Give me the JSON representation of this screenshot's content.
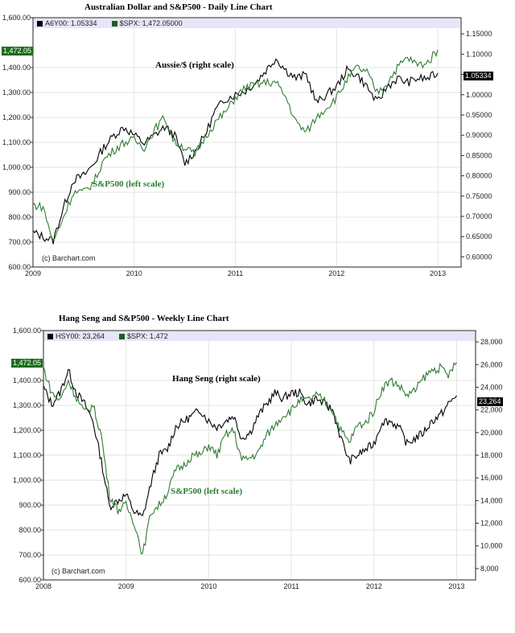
{
  "charts_meta": [
    {
      "title": "Australian Dollar and S&P500 - Daily Line Chart",
      "legend": [
        {
          "symbol": "A6Y00",
          "label": "A6Y00: 1.05334",
          "color": "#000000"
        },
        {
          "symbol": "$SPX",
          "label": "$SPX: 1,472.05000",
          "color": "#2e7d32"
        }
      ],
      "left_axis_ticks": [
        "1,600.00",
        "1,400.00",
        "1,300.00",
        "1,200.00",
        "1,100.00",
        "1,000.00",
        "900.00",
        "800.00",
        "700.00",
        "600.00"
      ],
      "right_axis_ticks": [
        "1.15000",
        "1.10000",
        "1.05000",
        "1.00000",
        "0.95000",
        "0.90000",
        "0.85000",
        "0.80000",
        "0.75000",
        "0.70000",
        "0.65000",
        "0.60000"
      ],
      "x_ticks": [
        "2009",
        "2010",
        "2011",
        "2012",
        "2013"
      ],
      "left_last_tag": "1,472.05",
      "right_last_tag": "1.05334",
      "annotation_right": "Aussie/$ (right scale)",
      "annotation_left": "S&P500 (left scale)",
      "copyright": "(c) Barchart.com"
    },
    {
      "title": "Hang Seng and S&P500 - Weekly Line Chart",
      "legend": [
        {
          "symbol": "HSY00",
          "label": "HSY00: 23,264",
          "color": "#000000"
        },
        {
          "symbol": "$SPX",
          "label": "$SPX: 1,472",
          "color": "#2e7d32"
        }
      ],
      "left_axis_ticks": [
        "1,600.00",
        "1,400.00",
        "1,300.00",
        "1,200.00",
        "1,100.00",
        "1,000.00",
        "900.00",
        "800.00",
        "700.00",
        "600.00"
      ],
      "right_axis_ticks": [
        "28,000",
        "26,000",
        "24,000",
        "22,000",
        "20,000",
        "18,000",
        "16,000",
        "14,000",
        "12,000",
        "10,000",
        "8,000"
      ],
      "x_ticks": [
        "2008",
        "2009",
        "2010",
        "2011",
        "2012",
        "2013"
      ],
      "left_last_tag": "1,472.05",
      "right_last_tag": "23,264",
      "annotation_right": "Hang Seng (right scale)",
      "annotation_left": "S&P500 (left scale)",
      "copyright": "(c) Barchart.com"
    }
  ],
  "chart_data": [
    {
      "type": "line",
      "title": "Australian Dollar and S&P500 - Daily Line Chart",
      "xlabel": "",
      "ylabel_left": "S&P500",
      "ylabel_right": "Aussie/$",
      "x_ticks": [
        "2009",
        "2010",
        "2011",
        "2012",
        "2013"
      ],
      "ylim_left": [
        600,
        1600
      ],
      "ylim_right": [
        0.575,
        1.19
      ],
      "grid": true,
      "legend_position": "top-left",
      "x": [
        2009.0,
        2009.1,
        2009.2,
        2009.3,
        2009.4,
        2009.5,
        2009.6,
        2009.7,
        2009.8,
        2009.9,
        2010.0,
        2010.1,
        2010.2,
        2010.3,
        2010.4,
        2010.5,
        2010.6,
        2010.7,
        2010.8,
        2010.9,
        2011.0,
        2011.1,
        2011.2,
        2011.3,
        2011.4,
        2011.5,
        2011.6,
        2011.7,
        2011.8,
        2011.9,
        2012.0,
        2012.1,
        2012.2,
        2012.3,
        2012.4,
        2012.5,
        2012.6,
        2012.7,
        2012.8,
        2012.9,
        2013.0
      ],
      "series": [
        {
          "name": "A6Y00 (Aussie/$, right scale)",
          "axis": "right",
          "color": "#000000",
          "values": [
            0.66,
            0.65,
            0.64,
            0.72,
            0.79,
            0.8,
            0.83,
            0.87,
            0.9,
            0.92,
            0.9,
            0.88,
            0.9,
            0.92,
            0.9,
            0.83,
            0.86,
            0.9,
            0.96,
            0.99,
            1.0,
            1.01,
            1.03,
            1.06,
            1.09,
            1.06,
            1.04,
            1.05,
            0.98,
            1.0,
            1.02,
            1.06,
            1.05,
            1.02,
            0.98,
            1.02,
            1.04,
            1.03,
            1.04,
            1.04,
            1.05334
          ]
        },
        {
          "name": "$SPX (S&P500, left scale)",
          "axis": "left",
          "color": "#2e7d32",
          "values": [
            850,
            840,
            700,
            800,
            900,
            900,
            940,
            1030,
            1070,
            1100,
            1110,
            1080,
            1150,
            1200,
            1100,
            1080,
            1050,
            1120,
            1180,
            1220,
            1280,
            1320,
            1330,
            1340,
            1340,
            1280,
            1180,
            1140,
            1200,
            1240,
            1280,
            1350,
            1400,
            1380,
            1300,
            1340,
            1400,
            1440,
            1410,
            1420,
            1472.05
          ]
        }
      ]
    },
    {
      "type": "line",
      "title": "Hang Seng and S&P500 - Weekly Line Chart",
      "xlabel": "",
      "ylabel_left": "S&P500",
      "ylabel_right": "Hang Seng",
      "x_ticks": [
        "2008",
        "2009",
        "2010",
        "2011",
        "2012",
        "2013"
      ],
      "ylim_left": [
        600,
        1600
      ],
      "ylim_right": [
        7000,
        29000
      ],
      "grid": true,
      "legend_position": "top-left",
      "x": [
        2008.0,
        2008.1,
        2008.2,
        2008.3,
        2008.4,
        2008.5,
        2008.6,
        2008.7,
        2008.8,
        2008.9,
        2009.0,
        2009.1,
        2009.2,
        2009.3,
        2009.4,
        2009.5,
        2009.6,
        2009.7,
        2009.8,
        2009.9,
        2010.0,
        2010.1,
        2010.2,
        2010.3,
        2010.4,
        2010.5,
        2010.6,
        2010.7,
        2010.8,
        2010.9,
        2011.0,
        2011.1,
        2011.2,
        2011.3,
        2011.4,
        2011.5,
        2011.6,
        2011.7,
        2011.8,
        2011.9,
        2012.0,
        2012.1,
        2012.2,
        2012.3,
        2012.4,
        2012.5,
        2012.6,
        2012.7,
        2012.8,
        2012.9,
        2013.0
      ],
      "series": [
        {
          "name": "HSY00 (Hang Seng, right scale)",
          "axis": "right",
          "color": "#000000",
          "values": [
            24000,
            22500,
            23500,
            25500,
            23500,
            22500,
            21000,
            17500,
            13500,
            14000,
            14500,
            13000,
            12500,
            15500,
            18000,
            18500,
            20500,
            21000,
            21500,
            22000,
            21000,
            20500,
            21000,
            21500,
            19500,
            20000,
            21500,
            22500,
            23500,
            23000,
            23500,
            23500,
            22500,
            23000,
            22500,
            22000,
            19500,
            17500,
            18000,
            18500,
            19000,
            21000,
            21000,
            20500,
            19000,
            19500,
            20000,
            21000,
            21500,
            22500,
            23264
          ]
        },
        {
          "name": "$SPX (S&P500, left scale)",
          "axis": "left",
          "color": "#2e7d32",
          "values": [
            1450,
            1350,
            1320,
            1400,
            1330,
            1270,
            1300,
            1180,
            940,
            880,
            900,
            830,
            700,
            870,
            900,
            950,
            1040,
            1060,
            1100,
            1100,
            1140,
            1100,
            1180,
            1200,
            1080,
            1090,
            1110,
            1180,
            1220,
            1260,
            1280,
            1320,
            1320,
            1340,
            1320,
            1280,
            1200,
            1150,
            1220,
            1230,
            1280,
            1370,
            1400,
            1380,
            1340,
            1360,
            1410,
            1440,
            1450,
            1420,
            1472
          ]
        }
      ]
    }
  ]
}
